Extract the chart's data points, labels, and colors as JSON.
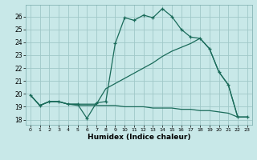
{
  "xlabel": "Humidex (Indice chaleur)",
  "bg_color": "#c8e8e8",
  "grid_color": "#a0c8c8",
  "line_color": "#1a6b5a",
  "xlim": [
    -0.5,
    23.5
  ],
  "ylim": [
    17.6,
    26.9
  ],
  "xticks": [
    0,
    1,
    2,
    3,
    4,
    5,
    6,
    7,
    8,
    9,
    10,
    11,
    12,
    13,
    14,
    15,
    16,
    17,
    18,
    19,
    20,
    21,
    22,
    23
  ],
  "yticks": [
    18,
    19,
    20,
    21,
    22,
    23,
    24,
    25,
    26
  ],
  "curve1_x": [
    0,
    1,
    2,
    3,
    4,
    5,
    6,
    7,
    8,
    9,
    10,
    11,
    12,
    13,
    14,
    15,
    16,
    17,
    18,
    19,
    20,
    21,
    22,
    23
  ],
  "curve1_y": [
    19.9,
    19.1,
    19.4,
    19.4,
    19.2,
    19.2,
    18.1,
    19.3,
    19.4,
    23.9,
    25.9,
    25.7,
    26.1,
    25.9,
    26.6,
    26.0,
    25.0,
    24.4,
    24.3,
    23.5,
    21.7,
    20.7,
    18.2,
    18.2
  ],
  "curve2_x": [
    0,
    1,
    2,
    3,
    4,
    5,
    6,
    7,
    8,
    9,
    10,
    11,
    12,
    13,
    14,
    15,
    16,
    17,
    18,
    19,
    20,
    21,
    22,
    23
  ],
  "curve2_y": [
    19.9,
    19.1,
    19.4,
    19.4,
    19.2,
    19.1,
    19.1,
    19.1,
    19.1,
    19.1,
    19.0,
    19.0,
    19.0,
    18.9,
    18.9,
    18.9,
    18.8,
    18.8,
    18.7,
    18.7,
    18.6,
    18.5,
    18.2,
    18.2
  ],
  "curve3_x": [
    0,
    1,
    2,
    3,
    4,
    5,
    6,
    7,
    8,
    9,
    10,
    11,
    12,
    13,
    14,
    15,
    16,
    17,
    18,
    19,
    20,
    21,
    22,
    23
  ],
  "curve3_y": [
    19.9,
    19.1,
    19.4,
    19.4,
    19.2,
    19.2,
    19.2,
    19.2,
    20.4,
    20.8,
    21.2,
    21.6,
    22.0,
    22.4,
    22.9,
    23.3,
    23.6,
    23.9,
    24.3,
    23.5,
    21.7,
    20.7,
    18.2,
    18.2
  ]
}
